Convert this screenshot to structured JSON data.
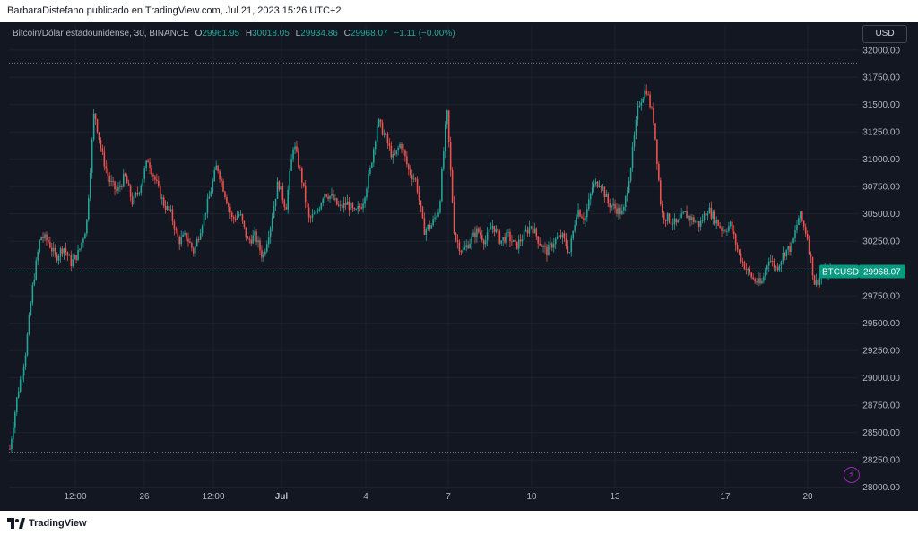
{
  "header": {
    "text": "BarbaraDistefano publicado en TradingView.com, Jul 21, 2023 15:26 UTC+2"
  },
  "legend": {
    "symbol": "Bitcoin/Dólar estadounidense, 30, BINANCE",
    "open_label": "O",
    "open": "29961.95",
    "high_label": "H",
    "high": "30018.05",
    "low_label": "L",
    "low": "29934.86",
    "close_label": "C",
    "close": "29968.07",
    "change": "−1.11 (−0.00%)"
  },
  "currency_button": "USD",
  "price_tag": {
    "symbol": "BTCUSD",
    "price": "29968.07"
  },
  "footer": {
    "brand": "TradingView",
    "logo_icon": "tradingview-logo-icon"
  },
  "colors": {
    "background": "#131722",
    "up": "#26a69a",
    "down": "#ef5350",
    "grid": "#1e222d",
    "axis_text": "#b2b5be",
    "accent_tag": "#089981",
    "lightning": "#9c27b0"
  },
  "chart_data": {
    "type": "candlestick",
    "symbol": "BTCUSD",
    "interval": "30",
    "exchange": "BINANCE",
    "y_ticks": [
      28000,
      28250,
      28500,
      28750,
      29000,
      29250,
      29500,
      29750,
      30000,
      30250,
      30500,
      30750,
      31000,
      31250,
      31500,
      31750,
      32000
    ],
    "y_tick_labels": [
      "28000.00",
      "28250.00",
      "28500.00",
      "28750.00",
      "29000.00",
      "29250.00",
      "29500.00",
      "29750.00",
      "30000.00",
      "30250.00",
      "30500.00",
      "30750.00",
      "31000.00",
      "31250.00",
      "31500.00",
      "31750.00",
      "32000.00"
    ],
    "ylim": [
      27980,
      32080
    ],
    "x_ticks": [
      {
        "label": "12:00",
        "bold": false
      },
      {
        "label": "26",
        "bold": false
      },
      {
        "label": "12:00",
        "bold": false
      },
      {
        "label": "Jul",
        "bold": true
      },
      {
        "label": "4",
        "bold": false
      },
      {
        "label": "7",
        "bold": false
      },
      {
        "label": "10",
        "bold": false
      },
      {
        "label": "13",
        "bold": false
      },
      {
        "label": "17",
        "bold": false
      },
      {
        "label": "20",
        "bold": false
      }
    ],
    "horizontal_lines": [
      31880,
      29968.07,
      28320
    ],
    "last_price": 29968.07,
    "close_path": [
      [
        0,
        28350
      ],
      [
        2,
        28850
      ],
      [
        4,
        29200
      ],
      [
        6,
        29850
      ],
      [
        8,
        30300
      ],
      [
        10,
        30250
      ],
      [
        12,
        30100
      ],
      [
        14,
        30200
      ],
      [
        16,
        30050
      ],
      [
        18,
        30150
      ],
      [
        20,
        30400
      ],
      [
        22,
        31450
      ],
      [
        24,
        31050
      ],
      [
        26,
        30800
      ],
      [
        28,
        30700
      ],
      [
        30,
        30850
      ],
      [
        32,
        30600
      ],
      [
        34,
        30750
      ],
      [
        36,
        31000
      ],
      [
        38,
        30800
      ],
      [
        40,
        30600
      ],
      [
        42,
        30500
      ],
      [
        44,
        30250
      ],
      [
        46,
        30300
      ],
      [
        48,
        30150
      ],
      [
        50,
        30400
      ],
      [
        52,
        30650
      ],
      [
        54,
        30950
      ],
      [
        56,
        30700
      ],
      [
        58,
        30450
      ],
      [
        60,
        30500
      ],
      [
        62,
        30250
      ],
      [
        64,
        30300
      ],
      [
        66,
        30100
      ],
      [
        68,
        30400
      ],
      [
        70,
        30800
      ],
      [
        72,
        30550
      ],
      [
        74,
        31150
      ],
      [
        76,
        30850
      ],
      [
        78,
        30450
      ],
      [
        80,
        30500
      ],
      [
        82,
        30700
      ],
      [
        84,
        30650
      ],
      [
        86,
        30550
      ],
      [
        88,
        30600
      ],
      [
        90,
        30500
      ],
      [
        92,
        30600
      ],
      [
        94,
        30900
      ],
      [
        96,
        31350
      ],
      [
        98,
        31200
      ],
      [
        100,
        31000
      ],
      [
        102,
        31150
      ],
      [
        104,
        30900
      ],
      [
        106,
        30800
      ],
      [
        108,
        30350
      ],
      [
        110,
        30400
      ],
      [
        112,
        30550
      ],
      [
        114,
        31450
      ],
      [
        116,
        30300
      ],
      [
        118,
        30150
      ],
      [
        120,
        30250
      ],
      [
        122,
        30350
      ],
      [
        124,
        30250
      ],
      [
        126,
        30400
      ],
      [
        128,
        30250
      ],
      [
        130,
        30300
      ],
      [
        132,
        30200
      ],
      [
        134,
        30300
      ],
      [
        136,
        30400
      ],
      [
        138,
        30250
      ],
      [
        140,
        30150
      ],
      [
        142,
        30250
      ],
      [
        144,
        30300
      ],
      [
        146,
        30150
      ],
      [
        148,
        30550
      ],
      [
        150,
        30450
      ],
      [
        152,
        30750
      ],
      [
        154,
        30800
      ],
      [
        156,
        30600
      ],
      [
        158,
        30550
      ],
      [
        160,
        30500
      ],
      [
        162,
        30950
      ],
      [
        164,
        31500
      ],
      [
        166,
        31650
      ],
      [
        168,
        31350
      ],
      [
        170,
        30500
      ],
      [
        172,
        30450
      ],
      [
        174,
        30400
      ],
      [
        176,
        30500
      ],
      [
        178,
        30450
      ],
      [
        180,
        30400
      ],
      [
        182,
        30550
      ],
      [
        184,
        30450
      ],
      [
        186,
        30350
      ],
      [
        188,
        30400
      ],
      [
        190,
        30150
      ],
      [
        192,
        30000
      ],
      [
        194,
        29900
      ],
      [
        196,
        29850
      ],
      [
        198,
        30100
      ],
      [
        200,
        30000
      ],
      [
        202,
        30150
      ],
      [
        204,
        30200
      ],
      [
        206,
        30500
      ],
      [
        208,
        30300
      ],
      [
        210,
        29850
      ],
      [
        212,
        29950
      ],
      [
        214,
        29968
      ]
    ]
  }
}
